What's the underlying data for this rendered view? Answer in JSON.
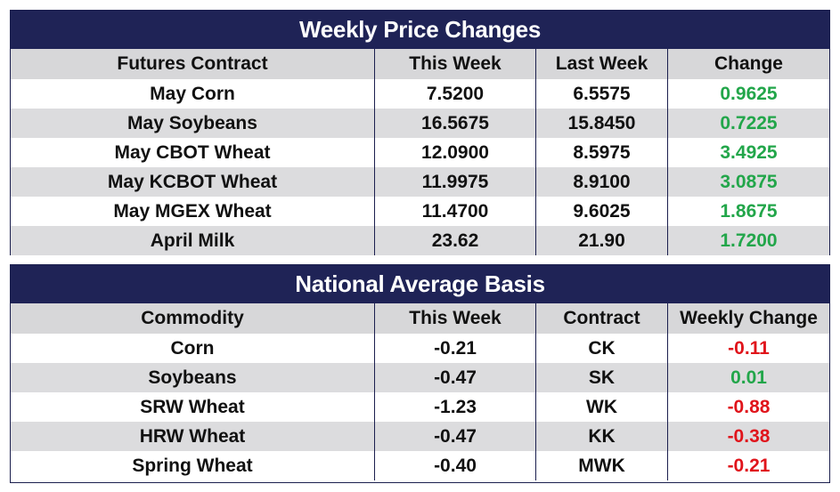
{
  "weekly": {
    "title": "Weekly Price Changes",
    "headers": [
      "Futures Contract",
      "This Week",
      "Last Week",
      "Change"
    ],
    "rows": [
      [
        "May Corn",
        "7.5200",
        "6.5575",
        "0.9625"
      ],
      [
        "May Soybeans",
        "16.5675",
        "15.8450",
        "0.7225"
      ],
      [
        "May CBOT Wheat",
        "12.0900",
        "8.5975",
        "3.4925"
      ],
      [
        "May KCBOT Wheat",
        "11.9975",
        "8.9100",
        "3.0875"
      ],
      [
        "May MGEX Wheat",
        "11.4700",
        "9.6025",
        "1.8675"
      ],
      [
        "April Milk",
        "23.62",
        "21.90",
        "1.7200"
      ]
    ]
  },
  "basis": {
    "title": "National Average Basis",
    "headers": [
      "Commodity",
      "This Week",
      "Contract",
      "Weekly Change"
    ],
    "rows": [
      [
        "Corn",
        "-0.21",
        "CK",
        "-0.11"
      ],
      [
        "Soybeans",
        "-0.47",
        "SK",
        "0.01"
      ],
      [
        "SRW Wheat",
        "-1.23",
        "WK",
        "-0.88"
      ],
      [
        "HRW Wheat",
        "-0.47",
        "KK",
        "-0.38"
      ],
      [
        "Spring Wheat",
        "-0.40",
        "MWK",
        "-0.21"
      ]
    ]
  },
  "colors": {
    "header_bg": "#1f2356",
    "positive": "#22a64a",
    "negative": "#e0141b",
    "shade": "#dcdcde"
  }
}
